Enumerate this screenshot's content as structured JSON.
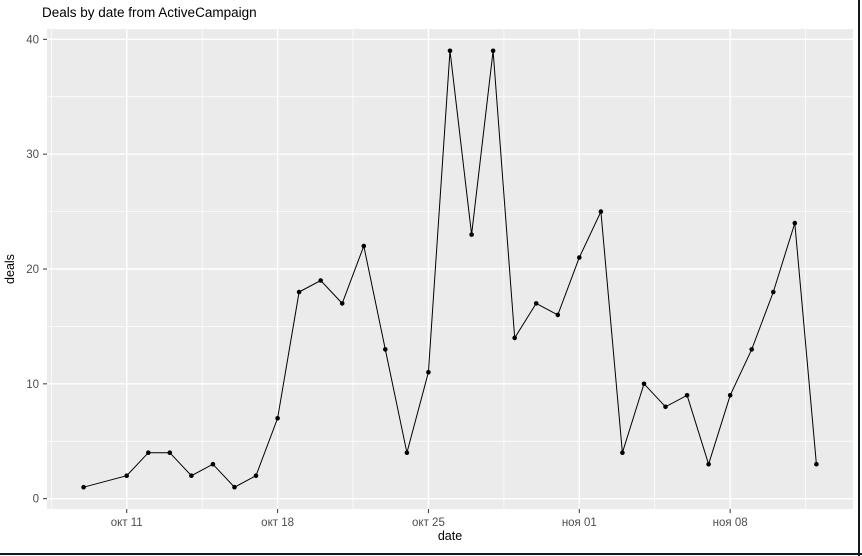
{
  "title": "Deals by date from ActiveCampaign",
  "window": {
    "border_color": "#0d1b26",
    "background": "#ffffff"
  },
  "chart_data": {
    "type": "line",
    "title": "Deals by date from ActiveCampaign",
    "xlabel": "date",
    "ylabel": "deals",
    "panel_background": "#ebebeb",
    "gridline_color": "#ffffff",
    "line_color": "#000000",
    "point_color": "#000000",
    "tick_label_color": "#4d4d4d",
    "tick_mark_color": "#333333",
    "legend": "none",
    "grid": "on",
    "x_tick_labels": [
      "окт 11",
      "окт 18",
      "окт 25",
      "ноя 01",
      "ноя 08"
    ],
    "x_tick_days": [
      2,
      9,
      16,
      23,
      30
    ],
    "y_ticks": [
      0,
      10,
      20,
      30,
      40
    ],
    "y_minor_ticks": [
      5,
      15,
      25,
      35
    ],
    "xlim": [
      -1.7,
      35.7
    ],
    "ylim": [
      -0.9,
      40.9
    ],
    "dates": [
      "окт 09",
      "окт 11",
      "окт 12",
      "окт 13",
      "окт 14",
      "окт 15",
      "окт 16",
      "окт 17",
      "окт 18",
      "окт 19",
      "окт 20",
      "окт 21",
      "окт 22",
      "окт 23",
      "окт 24",
      "окт 25",
      "окт 26",
      "окт 27",
      "окт 28",
      "окт 29",
      "окт 30",
      "окт 31",
      "ноя 01",
      "ноя 02",
      "ноя 03",
      "ноя 04",
      "ноя 05",
      "ноя 06",
      "ноя 07",
      "ноя 08",
      "ноя 09",
      "ноя 10",
      "ноя 11",
      "ноя 12"
    ],
    "days": [
      0,
      2,
      3,
      4,
      5,
      6,
      7,
      8,
      9,
      10,
      11,
      12,
      13,
      14,
      15,
      16,
      17,
      18,
      19,
      20,
      21,
      22,
      23,
      24,
      25,
      26,
      27,
      28,
      29,
      30,
      31,
      32,
      33,
      34
    ],
    "values": [
      1,
      2,
      4,
      4,
      2,
      3,
      1,
      2,
      7,
      18,
      19,
      17,
      22,
      13,
      4,
      11,
      39,
      23,
      39,
      14,
      17,
      16,
      21,
      25,
      4,
      10,
      8,
      9,
      3,
      9,
      13,
      18,
      24,
      3
    ]
  }
}
